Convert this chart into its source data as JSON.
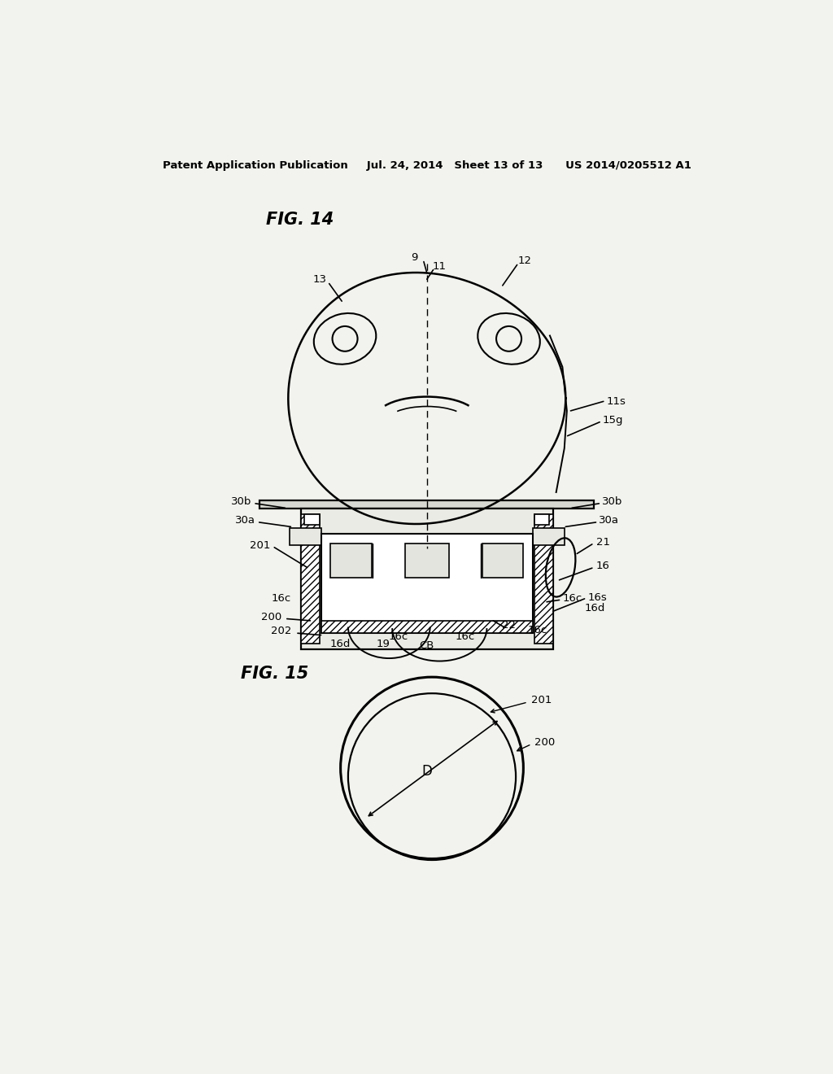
{
  "bg_color": "#f2f2ee",
  "header_text": "Patent Application Publication     Jul. 24, 2014   Sheet 13 of 13      US 2014/0205512 A1",
  "fig14_title": "FIG. 14",
  "fig15_title": "FIG. 15"
}
